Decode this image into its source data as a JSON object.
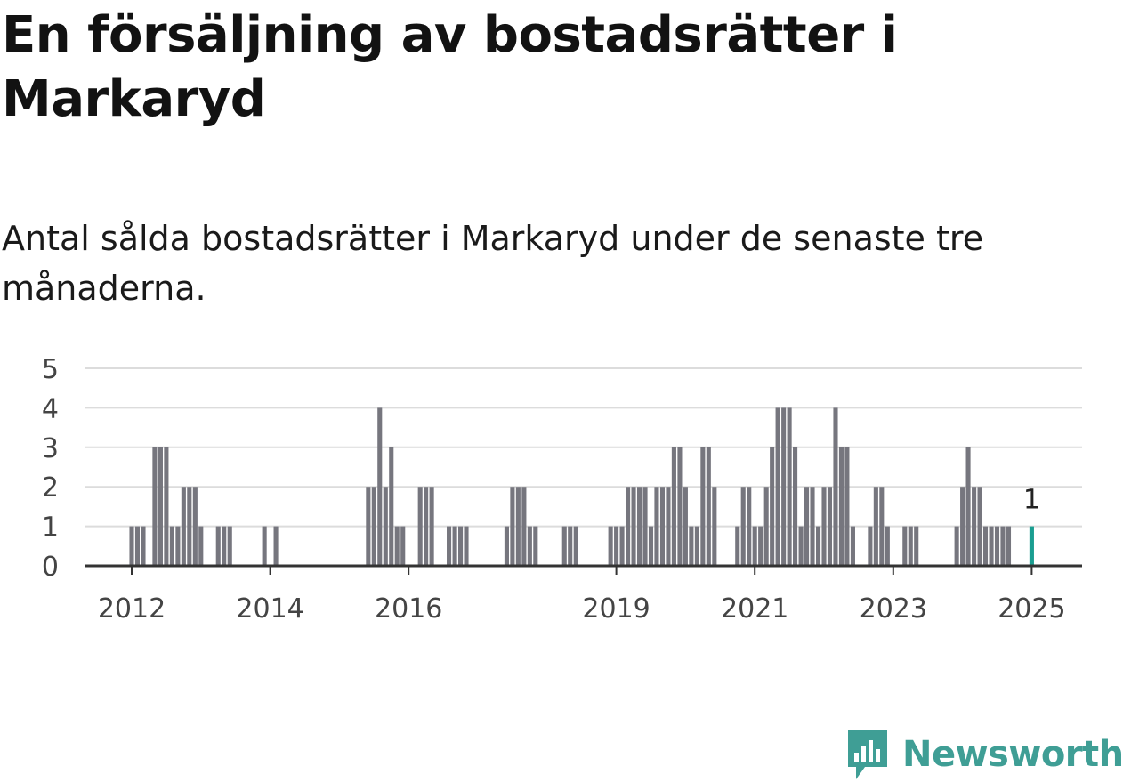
{
  "title": "En försäljning av bostadsrätter i Markaryd",
  "subtitle": "Antal sålda bostadsrätter i Markaryd under de senaste tre månaderna.",
  "logo_text": "Newsworthy",
  "colors": {
    "bar": "#76767e",
    "highlight": "#1a9e91",
    "grid": "#dcdcdc",
    "axis": "#333333",
    "logo": "#3f9e95"
  },
  "chart_data": {
    "type": "bar",
    "title": "En försäljning av bostadsrätter i Markaryd",
    "subtitle": "Antal sålda bostadsrätter i Markaryd under de senaste tre månaderna.",
    "xlabel": "",
    "ylabel": "",
    "ylim": [
      0,
      5
    ],
    "yticks": [
      0,
      1,
      2,
      3,
      4,
      5
    ],
    "grid": true,
    "xticks": [
      {
        "label": "2012",
        "x": 2012.0
      },
      {
        "label": "2014",
        "x": 2014.0
      },
      {
        "label": "2016",
        "x": 2016.0
      },
      {
        "label": "2019",
        "x": 2019.0
      },
      {
        "label": "2021",
        "x": 2021.0
      },
      {
        "label": "2023",
        "x": 2023.0
      },
      {
        "label": "2025",
        "x": 2025.0
      }
    ],
    "period_unit": "month",
    "first_period": "2011-08",
    "last_period": "2025-01",
    "bars": [
      {
        "x": 2012.0,
        "value": 1
      },
      {
        "x": 2012.083,
        "value": 1
      },
      {
        "x": 2012.167,
        "value": 1
      },
      {
        "x": 2012.333,
        "value": 3
      },
      {
        "x": 2012.417,
        "value": 3
      },
      {
        "x": 2012.5,
        "value": 3
      },
      {
        "x": 2012.583,
        "value": 1
      },
      {
        "x": 2012.667,
        "value": 1
      },
      {
        "x": 2012.75,
        "value": 2
      },
      {
        "x": 2012.833,
        "value": 2
      },
      {
        "x": 2012.917,
        "value": 2
      },
      {
        "x": 2013.0,
        "value": 1
      },
      {
        "x": 2013.25,
        "value": 1
      },
      {
        "x": 2013.333,
        "value": 1
      },
      {
        "x": 2013.417,
        "value": 1
      },
      {
        "x": 2013.917,
        "value": 1
      },
      {
        "x": 2014.083,
        "value": 1
      },
      {
        "x": 2015.417,
        "value": 2
      },
      {
        "x": 2015.5,
        "value": 2
      },
      {
        "x": 2015.583,
        "value": 4
      },
      {
        "x": 2015.667,
        "value": 2
      },
      {
        "x": 2015.75,
        "value": 3
      },
      {
        "x": 2015.833,
        "value": 1
      },
      {
        "x": 2015.917,
        "value": 1
      },
      {
        "x": 2016.167,
        "value": 2
      },
      {
        "x": 2016.25,
        "value": 2
      },
      {
        "x": 2016.333,
        "value": 2
      },
      {
        "x": 2016.583,
        "value": 1
      },
      {
        "x": 2016.667,
        "value": 1
      },
      {
        "x": 2016.75,
        "value": 1
      },
      {
        "x": 2016.833,
        "value": 1
      },
      {
        "x": 2017.417,
        "value": 1
      },
      {
        "x": 2017.5,
        "value": 2
      },
      {
        "x": 2017.583,
        "value": 2
      },
      {
        "x": 2017.667,
        "value": 2
      },
      {
        "x": 2017.75,
        "value": 1
      },
      {
        "x": 2017.833,
        "value": 1
      },
      {
        "x": 2018.25,
        "value": 1
      },
      {
        "x": 2018.333,
        "value": 1
      },
      {
        "x": 2018.417,
        "value": 1
      },
      {
        "x": 2018.917,
        "value": 1
      },
      {
        "x": 2019.0,
        "value": 1
      },
      {
        "x": 2019.083,
        "value": 1
      },
      {
        "x": 2019.167,
        "value": 2
      },
      {
        "x": 2019.25,
        "value": 2
      },
      {
        "x": 2019.333,
        "value": 2
      },
      {
        "x": 2019.417,
        "value": 2
      },
      {
        "x": 2019.5,
        "value": 1
      },
      {
        "x": 2019.583,
        "value": 2
      },
      {
        "x": 2019.667,
        "value": 2
      },
      {
        "x": 2019.75,
        "value": 2
      },
      {
        "x": 2019.833,
        "value": 3
      },
      {
        "x": 2019.917,
        "value": 3
      },
      {
        "x": 2020.0,
        "value": 2
      },
      {
        "x": 2020.083,
        "value": 1
      },
      {
        "x": 2020.167,
        "value": 1
      },
      {
        "x": 2020.25,
        "value": 3
      },
      {
        "x": 2020.333,
        "value": 3
      },
      {
        "x": 2020.417,
        "value": 2
      },
      {
        "x": 2020.75,
        "value": 1
      },
      {
        "x": 2020.833,
        "value": 2
      },
      {
        "x": 2020.917,
        "value": 2
      },
      {
        "x": 2021.0,
        "value": 1
      },
      {
        "x": 2021.083,
        "value": 1
      },
      {
        "x": 2021.167,
        "value": 2
      },
      {
        "x": 2021.25,
        "value": 3
      },
      {
        "x": 2021.333,
        "value": 4
      },
      {
        "x": 2021.417,
        "value": 4
      },
      {
        "x": 2021.5,
        "value": 4
      },
      {
        "x": 2021.583,
        "value": 3
      },
      {
        "x": 2021.667,
        "value": 1
      },
      {
        "x": 2021.75,
        "value": 2
      },
      {
        "x": 2021.833,
        "value": 2
      },
      {
        "x": 2021.917,
        "value": 1
      },
      {
        "x": 2022.0,
        "value": 2
      },
      {
        "x": 2022.083,
        "value": 2
      },
      {
        "x": 2022.167,
        "value": 4
      },
      {
        "x": 2022.25,
        "value": 3
      },
      {
        "x": 2022.333,
        "value": 3
      },
      {
        "x": 2022.417,
        "value": 1
      },
      {
        "x": 2022.667,
        "value": 1
      },
      {
        "x": 2022.75,
        "value": 2
      },
      {
        "x": 2022.833,
        "value": 2
      },
      {
        "x": 2022.917,
        "value": 1
      },
      {
        "x": 2023.167,
        "value": 1
      },
      {
        "x": 2023.25,
        "value": 1
      },
      {
        "x": 2023.333,
        "value": 1
      },
      {
        "x": 2023.917,
        "value": 1
      },
      {
        "x": 2024.0,
        "value": 2
      },
      {
        "x": 2024.083,
        "value": 3
      },
      {
        "x": 2024.167,
        "value": 2
      },
      {
        "x": 2024.25,
        "value": 2
      },
      {
        "x": 2024.333,
        "value": 1
      },
      {
        "x": 2024.417,
        "value": 1
      },
      {
        "x": 2024.5,
        "value": 1
      },
      {
        "x": 2024.583,
        "value": 1
      },
      {
        "x": 2024.667,
        "value": 1
      },
      {
        "x": 2025.0,
        "value": 1,
        "highlight": true
      }
    ],
    "annotations": [
      {
        "text": "1",
        "x": 2025.0,
        "value": 1
      }
    ]
  }
}
